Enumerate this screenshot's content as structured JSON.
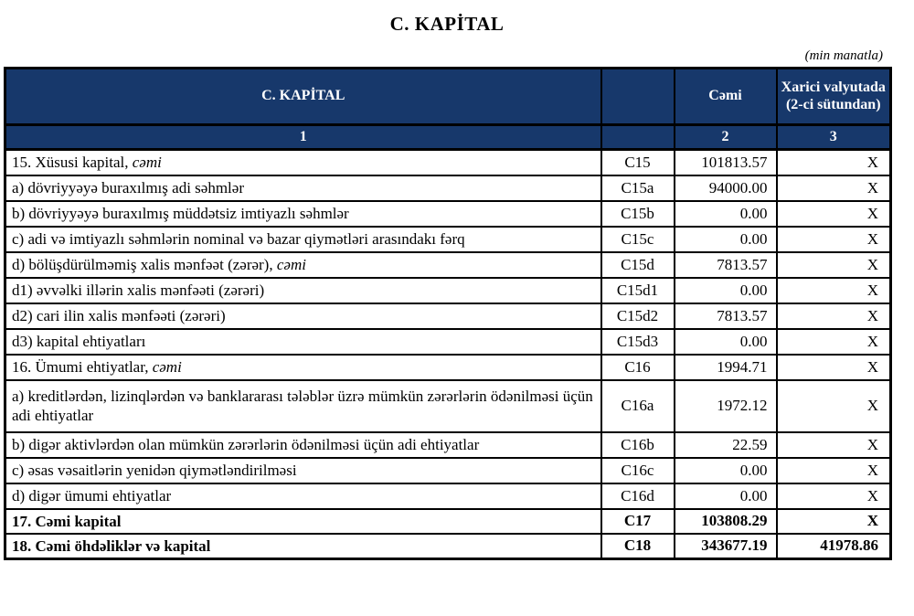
{
  "title": "C. KAPİTAL",
  "unit_note": "(min manatla)",
  "colors": {
    "header_bg": "#17386B",
    "header_text": "#ffffff",
    "border": "#000000"
  },
  "table": {
    "header": {
      "col_label": "C. KAPİTAL",
      "col_code": "",
      "col_total": "Cəmi",
      "col_fx": "Xarici valyutada (2-ci sütundan)"
    },
    "subheader": {
      "col_label": "1",
      "col_code": "",
      "col_total": "2",
      "col_fx": "3"
    },
    "rows": [
      {
        "label": "15. Xüsusi kapital,",
        "label_italic": "cəmi",
        "code": "C15",
        "total": "101813.57",
        "foreign": "X"
      },
      {
        "label": "a) dövriyyəyə buraxılmış adi səhmlər",
        "code": "C15a",
        "total": "94000.00",
        "foreign": "X"
      },
      {
        "label": "b) dövriyyəyə buraxılmış müddətsiz imtiyazlı səhmlər",
        "code": "C15b",
        "total": "0.00",
        "foreign": "X"
      },
      {
        "label": "c) adi və imtiyazlı səhmlərin nominal və bazar qiymətləri arasındakı fərq",
        "code": "C15c",
        "total": "0.00",
        "foreign": "X"
      },
      {
        "label": "d) bölüşdürülməmiş xalis mənfəət (zərər),",
        "label_italic": "cəmi",
        "code": "C15d",
        "total": "7813.57",
        "foreign": "X"
      },
      {
        "label": "d1) əvvəlki illərin xalis mənfəəti (zərəri)",
        "code": "C15d1",
        "total": "0.00",
        "foreign": "X"
      },
      {
        "label": "d2) cari ilin xalis mənfəəti (zərəri)",
        "code": "C15d2",
        "total": "7813.57",
        "foreign": "X"
      },
      {
        "label": "d3) kapital ehtiyatları",
        "code": "C15d3",
        "total": "0.00",
        "foreign": "X"
      },
      {
        "label": "16. Ümumi ehtiyatlar,",
        "label_italic": "cəmi",
        "code": "C16",
        "total": "1994.71",
        "foreign": "X"
      },
      {
        "label": "a) kreditlərdən, lizinqlərdən və banklararası  tələblər üzrə mümkün zərərlərin ödənilməsi üçün adi ehtiyatlar",
        "code": "C16a",
        "total": "1972.12",
        "foreign": "X"
      },
      {
        "label": "b) digər aktivlərdən olan mümkün zərərlərin ödənilməsi üçün adi ehtiyatlar",
        "code": "C16b",
        "total": "22.59",
        "foreign": "X"
      },
      {
        "label": "c) əsas vəsaitlərin yenidən qiymətləndirilməsi",
        "code": "C16c",
        "total": "0.00",
        "foreign": "X"
      },
      {
        "label": "d) digər ümumi ehtiyatlar",
        "code": "C16d",
        "total": "0.00",
        "foreign": "X"
      },
      {
        "label": "17. Cəmi kapital",
        "code": "C17",
        "total": "103808.29",
        "foreign": "X"
      },
      {
        "label": "18. Cəmi öhdəliklər və kapital",
        "code": "C18",
        "total": "343677.19",
        "foreign": "41978.86"
      }
    ]
  }
}
